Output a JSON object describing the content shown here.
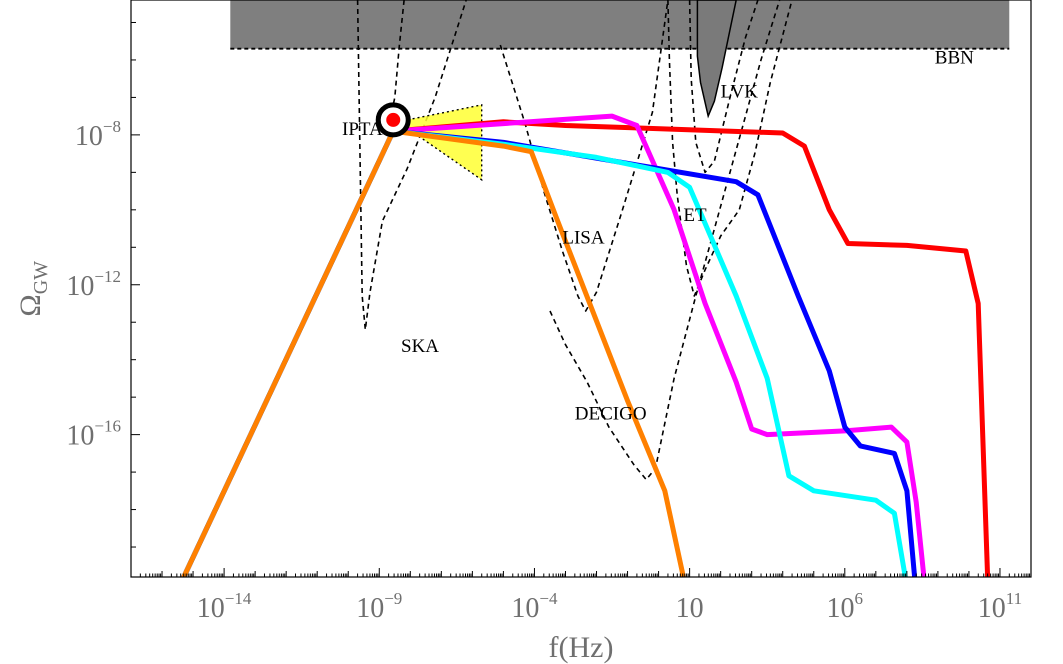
{
  "chart_data": {
    "type": "line",
    "title": "",
    "xlabel": "f(Hz)",
    "ylabel_main": "Ω",
    "ylabel_sub": "GW",
    "x_scale": "log10",
    "y_scale": "log10",
    "xlim_log10": [
      -17,
      12
    ],
    "ylim_log10": [
      -19.8,
      -4.4
    ],
    "grid": false,
    "legend": "none",
    "x_ticks": [
      {
        "log10": -14,
        "base": "10",
        "exp": "−14"
      },
      {
        "log10": -9,
        "base": "10",
        "exp": "−9"
      },
      {
        "log10": -4,
        "base": "10",
        "exp": "−4"
      },
      {
        "log10": 1,
        "base": "10",
        "exp": ""
      },
      {
        "log10": 6,
        "base": "10",
        "exp": "6"
      },
      {
        "log10": 11,
        "base": "10",
        "exp": "11"
      }
    ],
    "y_ticks": [
      {
        "log10": -8,
        "base": "10",
        "exp": "−8"
      },
      {
        "log10": -12,
        "base": "10",
        "exp": "−12"
      },
      {
        "log10": -16,
        "base": "10",
        "exp": "−16"
      }
    ],
    "bbn": {
      "label": "BBN",
      "ymin_log10": -5.7,
      "ymax_log10": -4.4,
      "xmin_log10": -13.8,
      "xmax_log10": 11.3,
      "color": "#7f7f7f"
    },
    "detectors": [
      {
        "name": "IPTA",
        "label_at": [
          -10.2,
          -8.0
        ]
      },
      {
        "name": "SKA",
        "label_at": [
          -8.3,
          -13.8
        ]
      },
      {
        "name": "LISA",
        "label_at": [
          -3.1,
          -10.9
        ]
      },
      {
        "name": "ET",
        "label_at": [
          0.8,
          -10.3
        ]
      },
      {
        "name": "LVK",
        "label_at": [
          2.0,
          -7.0
        ]
      },
      {
        "name": "DECIGO",
        "label_at": [
          -2.7,
          -15.6
        ]
      },
      {
        "name": "BBN",
        "label_at": [
          8.9,
          -6.1
        ]
      }
    ],
    "sensitivity_curves": [
      {
        "name": "SKA",
        "points": [
          [
            -9.7,
            -4.4
          ],
          [
            -9.55,
            -12.3
          ],
          [
            -9.45,
            -13.2
          ],
          [
            -9.3,
            -12.2
          ],
          [
            -8.9,
            -10.3
          ],
          [
            -8.1,
            -8.9
          ],
          [
            -7.2,
            -7.0
          ],
          [
            -6.2,
            -4.4
          ]
        ]
      },
      {
        "name": "IPTA",
        "points": [
          [
            -8.2,
            -4.4
          ],
          [
            -8.35,
            -5.6
          ],
          [
            -8.5,
            -7.0
          ],
          [
            -8.75,
            -8.0
          ]
        ]
      },
      {
        "name": "LISA",
        "points": [
          [
            -5.1,
            -5.6
          ],
          [
            -4.3,
            -7.7
          ],
          [
            -3.7,
            -9.5
          ],
          [
            -3.1,
            -11.1
          ],
          [
            -2.6,
            -12.3
          ],
          [
            -2.35,
            -12.7
          ],
          [
            -2.0,
            -12.2
          ],
          [
            -1.2,
            -10.1
          ],
          [
            -0.2,
            -7.4
          ],
          [
            0.3,
            -4.4
          ]
        ]
      },
      {
        "name": "DECIGO",
        "points": [
          [
            -3.5,
            -12.7
          ],
          [
            -3.0,
            -13.6
          ],
          [
            -2.3,
            -14.6
          ],
          [
            -1.6,
            -15.8
          ],
          [
            -0.8,
            -16.8
          ],
          [
            -0.4,
            -17.2
          ],
          [
            -0.1,
            -16.9
          ],
          [
            0.5,
            -14.5
          ],
          [
            1.2,
            -12.3
          ],
          [
            1.9,
            -10.2
          ],
          [
            2.6,
            -8.1
          ],
          [
            3.3,
            -6.0
          ],
          [
            3.9,
            -4.4
          ]
        ]
      },
      {
        "name": "ET",
        "points": [
          [
            0.3,
            -4.4
          ],
          [
            0.35,
            -6.0
          ],
          [
            0.45,
            -8.2
          ],
          [
            0.6,
            -9.6
          ],
          [
            0.9,
            -11.5
          ],
          [
            1.15,
            -12.3
          ],
          [
            1.5,
            -11.6
          ],
          [
            2.0,
            -10.7
          ],
          [
            2.6,
            -10.0
          ],
          [
            3.1,
            -8.5
          ],
          [
            3.6,
            -6.6
          ],
          [
            4.3,
            -4.4
          ]
        ]
      },
      {
        "name": "LVK",
        "points": [
          [
            1.0,
            -4.4
          ],
          [
            1.05,
            -6.5
          ],
          [
            1.2,
            -8.2
          ],
          [
            1.5,
            -9.0
          ],
          [
            1.8,
            -8.7
          ],
          [
            2.3,
            -7.0
          ],
          [
            2.8,
            -5.4
          ],
          [
            3.2,
            -4.4
          ]
        ]
      }
    ],
    "lvk_region": {
      "name": "LVK",
      "points": [
        [
          1.25,
          -5.9
        ],
        [
          1.35,
          -6.6
        ],
        [
          1.6,
          -7.5
        ],
        [
          1.8,
          -7.1
        ],
        [
          2.05,
          -6.2
        ],
        [
          2.35,
          -5.0
        ],
        [
          2.5,
          -4.4
        ],
        [
          1.25,
          -4.4
        ]
      ]
    },
    "ipta_marker": {
      "x_log10": -8.55,
      "y_log10": -7.6
    },
    "ipta_region": {
      "points": [
        [
          -8.4,
          -7.65
        ],
        [
          -5.7,
          -7.2
        ],
        [
          -5.7,
          -9.2
        ]
      ],
      "color": "#ffff33"
    },
    "series": [
      {
        "name": "",
        "color": "#ff0000",
        "points": [
          [
            -15.3,
            -19.8
          ],
          [
            -8.55,
            -7.9
          ],
          [
            -5.0,
            -7.65
          ],
          [
            -3.0,
            -7.75
          ],
          [
            4.0,
            -7.95
          ],
          [
            4.7,
            -8.3
          ],
          [
            5.5,
            -10.0
          ],
          [
            6.1,
            -10.9
          ],
          [
            8.0,
            -10.95
          ],
          [
            9.9,
            -11.1
          ],
          [
            10.3,
            -12.5
          ],
          [
            10.6,
            -19.8
          ]
        ]
      },
      {
        "name": "",
        "color": "#ff00ff",
        "points": [
          [
            -15.3,
            -19.8
          ],
          [
            -8.55,
            -7.9
          ],
          [
            -5.0,
            -7.7
          ],
          [
            -1.5,
            -7.5
          ],
          [
            -0.7,
            -7.75
          ],
          [
            0.5,
            -10.0
          ],
          [
            1.5,
            -12.5
          ],
          [
            2.5,
            -14.6
          ],
          [
            3.0,
            -15.85
          ],
          [
            3.5,
            -16.0
          ],
          [
            6.0,
            -15.9
          ],
          [
            7.5,
            -15.8
          ],
          [
            8.0,
            -16.2
          ],
          [
            8.3,
            -17.8
          ],
          [
            8.55,
            -19.8
          ]
        ]
      },
      {
        "name": "",
        "color": "#0000ff",
        "points": [
          [
            -15.3,
            -19.8
          ],
          [
            -8.55,
            -7.9
          ],
          [
            -5.0,
            -8.2
          ],
          [
            0.0,
            -8.9
          ],
          [
            2.5,
            -9.25
          ],
          [
            3.2,
            -9.6
          ],
          [
            4.5,
            -12.3
          ],
          [
            5.5,
            -14.3
          ],
          [
            6.0,
            -15.8
          ],
          [
            6.5,
            -16.3
          ],
          [
            7.6,
            -16.5
          ],
          [
            8.0,
            -17.5
          ],
          [
            8.25,
            -19.8
          ]
        ]
      },
      {
        "name": "",
        "color": "#00ffff",
        "points": [
          [
            -15.3,
            -19.8
          ],
          [
            -8.55,
            -7.9
          ],
          [
            -5.0,
            -8.25
          ],
          [
            -2.0,
            -8.6
          ],
          [
            0.3,
            -9.0
          ],
          [
            1.0,
            -9.4
          ],
          [
            2.5,
            -12.3
          ],
          [
            3.5,
            -14.5
          ],
          [
            4.2,
            -17.1
          ],
          [
            5.0,
            -17.5
          ],
          [
            7.0,
            -17.75
          ],
          [
            7.6,
            -18.1
          ],
          [
            7.95,
            -19.8
          ]
        ]
      },
      {
        "name": "",
        "color": "#ff8000",
        "points": [
          [
            -15.3,
            -19.8
          ],
          [
            -8.55,
            -7.9
          ],
          [
            -5.0,
            -8.3
          ],
          [
            -4.1,
            -8.45
          ],
          [
            -3.3,
            -10.2
          ],
          [
            -1.0,
            -15.1
          ],
          [
            0.2,
            -17.5
          ],
          [
            0.8,
            -19.8
          ]
        ]
      }
    ]
  }
}
